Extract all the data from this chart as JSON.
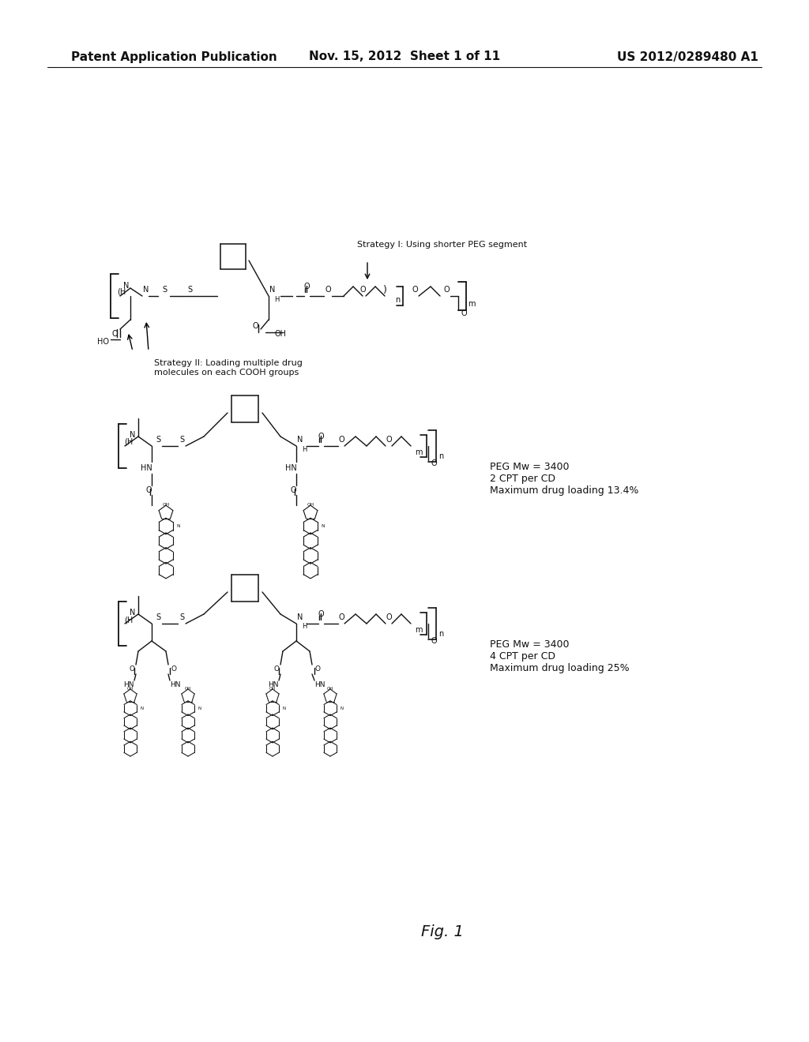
{
  "background_color": "#ffffff",
  "header_left": "Patent Application Publication",
  "header_mid": "Nov. 15, 2012  Sheet 1 of 11",
  "header_right": "US 2012/0289480 A1",
  "fig_label": "Fig. 1",
  "strategy1_label": "Strategy I: Using shorter PEG segment",
  "strategy2_label": "Strategy II: Loading multiple drug\nmolecules on each COOH groups",
  "peg_label1": "PEG Mw = 3400\n2 CPT per CD\nMaximum drug loading 13.4%",
  "peg_label2": "PEG Mw = 3400\n4 CPT per CD\nMaximum drug loading 25%"
}
